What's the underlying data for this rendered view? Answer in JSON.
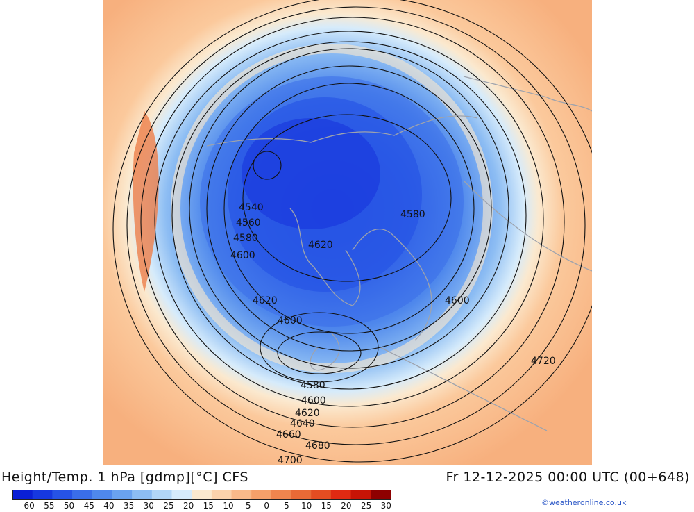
{
  "map": {
    "title_left": "Height/Temp. 1 hPa [gdmp][°C] CFS",
    "title_right": "Fr 12-12-2025 00:00 UTC (00+648)",
    "credit": "©weatheronline.co.uk",
    "contour_labels": [
      "4540",
      "4560",
      "4580",
      "4600",
      "4620",
      "4600",
      "4620",
      "4580",
      "4600",
      "4580",
      "4600",
      "4620",
      "4640",
      "4660",
      "4680",
      "4700",
      "4720"
    ],
    "colorbar": {
      "ticks": [
        "-60",
        "-55",
        "-50",
        "-45",
        "-40",
        "-35",
        "-30",
        "-25",
        "-20",
        "-15",
        "-10",
        "-5",
        "0",
        "5",
        "10",
        "15",
        "20",
        "25",
        "30"
      ],
      "colors": [
        "#0a1fd6",
        "#1638e0",
        "#2653e6",
        "#3a6ee9",
        "#4f88ec",
        "#6aa2ef",
        "#8dbdf3",
        "#b2d6f7",
        "#d6ebfb",
        "#fbe9cf",
        "#fbd2ac",
        "#f9b98a",
        "#f6a06a",
        "#f0854e",
        "#e96a36",
        "#e44d22",
        "#e02a12",
        "#c81406",
        "#8e0000"
      ]
    }
  }
}
